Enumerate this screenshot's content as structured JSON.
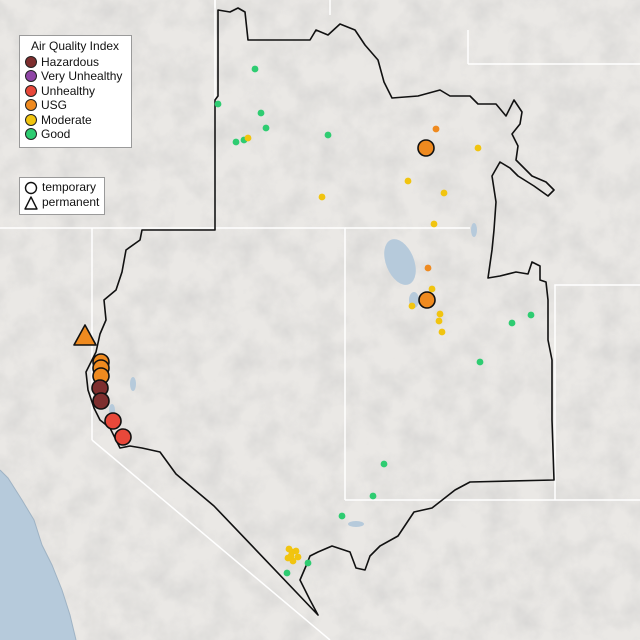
{
  "legend": {
    "title": "Air Quality Index",
    "categories": [
      {
        "label": "Hazardous",
        "color": "#7e2e2e"
      },
      {
        "label": "Very Unhealthy",
        "color": "#8f46a6"
      },
      {
        "label": "Unhealthy",
        "color": "#e8483a"
      },
      {
        "label": "USG",
        "color": "#ef8a1f"
      },
      {
        "label": "Moderate",
        "color": "#f1c40f"
      },
      {
        "label": "Good",
        "color": "#2ecc71"
      }
    ]
  },
  "monitor_types": {
    "temporary": {
      "label": "temporary",
      "shape": "circle-icon"
    },
    "permanent": {
      "label": "permanent",
      "shape": "triangle-icon"
    }
  },
  "colors": {
    "land": "#e9e7e4",
    "water": "#b4c9da",
    "boundary": "#111111",
    "state_lines": "#ffffff"
  }
}
